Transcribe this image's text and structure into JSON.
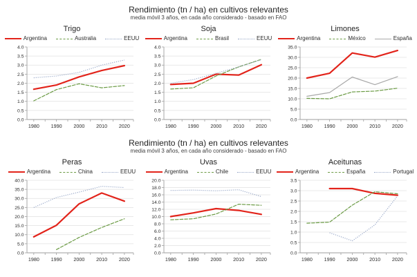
{
  "palette": {
    "argentina_red": "#e2231a",
    "series2_green": "#6a9a43",
    "dotted_blue": "#98a8c8",
    "espana_gray": "#a8a8a8",
    "gridline": "#e0e0e0",
    "axis": "#9e9e9e",
    "tick_text": "#2b2b2b",
    "title_text": "#1f1f1f"
  },
  "sections": [
    {
      "title": "Rendimiento (tn / ha) en cultivos relevantes",
      "subtitle": "media móvil 3 años, en cada año considerado - basado en FAO",
      "chart_indexes": [
        0,
        1,
        2
      ]
    },
    {
      "title": "Rendimiento (tn / ha) en cultivos relevantes",
      "subtitle": "media móvil 3 años, en cada año considerado - basado en FAO",
      "chart_indexes": [
        3,
        4,
        5
      ]
    }
  ],
  "chart_data": [
    {
      "type": "line",
      "title": "Trigo",
      "x": [
        1980,
        1990,
        2000,
        2010,
        2020
      ],
      "xticks": [
        1980,
        1990,
        2000,
        2010,
        2020
      ],
      "ylim": [
        0,
        4.0
      ],
      "ytick_step": 0.5,
      "yticks": [
        "0.0",
        "0.5",
        "1.0",
        "1.5",
        "2.0",
        "2.5",
        "3.0",
        "3.5",
        "4.0"
      ],
      "grid": true,
      "legend_position": "top",
      "series": [
        {
          "name": "Argentina",
          "values": [
            1.67,
            1.9,
            2.35,
            2.7,
            2.97
          ],
          "color": "#e2231a",
          "style": "solid",
          "width": 2.2
        },
        {
          "name": "Australia",
          "values": [
            1.03,
            1.65,
            1.97,
            1.75,
            1.87
          ],
          "color": "#6a9a43",
          "style": "dashed",
          "width": 1.2
        },
        {
          "name": "EEUU",
          "values": [
            2.3,
            2.4,
            2.6,
            3.0,
            3.28
          ],
          "color": "#98a8c8",
          "style": "dotted",
          "width": 1.2
        }
      ]
    },
    {
      "type": "line",
      "title": "Soja",
      "x": [
        1980,
        1990,
        2000,
        2010,
        2020
      ],
      "xticks": [
        1980,
        1990,
        2000,
        2010,
        2020
      ],
      "ylim": [
        0,
        4.0
      ],
      "ytick_step": 0.5,
      "yticks": [
        "0.0",
        "0.5",
        "1.0",
        "1.5",
        "2.0",
        "2.5",
        "3.0",
        "3.5",
        "4.0"
      ],
      "grid": true,
      "legend_position": "top",
      "series": [
        {
          "name": "Argentina",
          "values": [
            1.93,
            2.0,
            2.5,
            2.45,
            3.02
          ],
          "color": "#e2231a",
          "style": "solid",
          "width": 2.2
        },
        {
          "name": "Brasil",
          "values": [
            1.68,
            1.75,
            2.4,
            2.9,
            3.32
          ],
          "color": "#6a9a43",
          "style": "dashed",
          "width": 1.2
        },
        {
          "name": "EEUU",
          "values": [
            2.0,
            2.2,
            2.55,
            2.9,
            3.3
          ],
          "color": "#98a8c8",
          "style": "dotted",
          "width": 1.2
        }
      ]
    },
    {
      "type": "line",
      "title": "Limones",
      "x": [
        1980,
        1990,
        2000,
        2010,
        2020
      ],
      "xticks": [
        1980,
        1990,
        2000,
        2010,
        2020
      ],
      "ylim": [
        0,
        35.0
      ],
      "ytick_step": 5,
      "yticks": [
        "0.0",
        "5.0",
        "10.0",
        "15.0",
        "20.0",
        "25.0",
        "30.0",
        "35.0"
      ],
      "grid": true,
      "legend_position": "top",
      "series": [
        {
          "name": "Argentina",
          "values": [
            20.0,
            22.3,
            32.1,
            30.1,
            33.3
          ],
          "color": "#e2231a",
          "style": "solid",
          "width": 2.2
        },
        {
          "name": "México",
          "values": [
            10.2,
            10.0,
            13.3,
            13.7,
            15.1
          ],
          "color": "#6a9a43",
          "style": "dashed",
          "width": 1.2
        },
        {
          "name": "España",
          "values": [
            11.2,
            13.0,
            20.5,
            16.8,
            20.7
          ],
          "color": "#a8a8a8",
          "style": "solid",
          "width": 1.2
        }
      ]
    },
    {
      "type": "line",
      "title": "Peras",
      "x": [
        1980,
        1990,
        2000,
        2010,
        2020
      ],
      "xticks": [
        1980,
        1990,
        2000,
        2010,
        2020
      ],
      "ylim": [
        0,
        40.0
      ],
      "ytick_step": 5,
      "yticks": [
        "0.0",
        "5.0",
        "10.0",
        "15.0",
        "20.0",
        "25.0",
        "30.0",
        "35.0",
        "40.0"
      ],
      "grid": true,
      "legend_position": "top",
      "series": [
        {
          "name": "Argentina",
          "values": [
            8.8,
            15.2,
            27.0,
            33.0,
            28.5
          ],
          "color": "#e2231a",
          "style": "solid",
          "width": 2.2
        },
        {
          "name": "China",
          "values": [
            null,
            1.8,
            8.5,
            14.0,
            18.8
          ],
          "color": "#6a9a43",
          "style": "dashed",
          "width": 1.2
        },
        {
          "name": "EEUU",
          "values": [
            25.0,
            30.5,
            33.5,
            36.7,
            36.0
          ],
          "color": "#98a8c8",
          "style": "dotted",
          "width": 1.2
        }
      ]
    },
    {
      "type": "line",
      "title": "Uvas",
      "x": [
        1980,
        1990,
        2000,
        2010,
        2020
      ],
      "xticks": [
        1980,
        1990,
        2000,
        2010,
        2020
      ],
      "ylim": [
        0,
        20.0
      ],
      "ytick_step": 2,
      "yticks": [
        "0.0",
        "2.0",
        "4.0",
        "6.0",
        "8.0",
        "10.0",
        "12.0",
        "14.0",
        "16.0",
        "18.0",
        "20.0"
      ],
      "grid": true,
      "legend_position": "top",
      "series": [
        {
          "name": "Argentina",
          "values": [
            10.0,
            11.0,
            12.2,
            11.7,
            10.6
          ],
          "color": "#e2231a",
          "style": "solid",
          "width": 2.2
        },
        {
          "name": "Chile",
          "values": [
            9.1,
            9.4,
            10.7,
            13.4,
            13.1
          ],
          "color": "#6a9a43",
          "style": "dashed",
          "width": 1.2
        },
        {
          "name": "EEUU",
          "values": [
            17.2,
            17.3,
            17.1,
            17.4,
            15.5
          ],
          "color": "#98a8c8",
          "style": "dotted",
          "width": 1.2
        }
      ]
    },
    {
      "type": "line",
      "title": "Aceitunas",
      "x": [
        1980,
        1990,
        2000,
        2010,
        2020
      ],
      "xticks": [
        1980,
        1990,
        2000,
        2010,
        2020
      ],
      "ylim": [
        0,
        3.5
      ],
      "ytick_step": 0.5,
      "yticks": [
        "0.0",
        "0.5",
        "1.0",
        "1.5",
        "2.0",
        "2.5",
        "3.0",
        "3.5"
      ],
      "grid": true,
      "legend_position": "top",
      "series": [
        {
          "name": "Argentina",
          "values": [
            null,
            3.1,
            3.1,
            2.87,
            2.78
          ],
          "color": "#e2231a",
          "style": "solid",
          "width": 2.2
        },
        {
          "name": "España",
          "values": [
            1.43,
            1.48,
            2.3,
            2.95,
            2.85
          ],
          "color": "#6a9a43",
          "style": "dashed",
          "width": 1.2
        },
        {
          "name": "Portugal",
          "values": [
            null,
            0.97,
            0.58,
            1.35,
            2.75
          ],
          "color": "#98a8c8",
          "style": "dotted",
          "width": 1.2
        }
      ]
    }
  ]
}
